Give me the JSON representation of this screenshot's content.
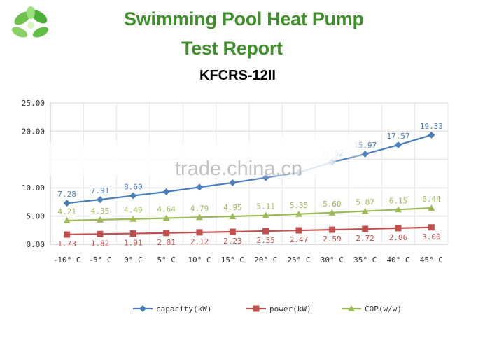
{
  "header": {
    "title_line1": "Swimming Pool Heat Pump",
    "title_line2": "Test Report",
    "model": "KFCRS-12II"
  },
  "logo": {
    "icon": "green-leaves-logo"
  },
  "watermark": "trade.china.cn",
  "colors": {
    "title": "#3f8f2a",
    "capacity": "#4a7ebb",
    "power": "#c0504d",
    "cop": "#9bbb59",
    "grid": "#d9d9d9"
  },
  "chart_data": {
    "type": "line",
    "categories": [
      "-10° C",
      "-5° C",
      "0° C",
      "5° C",
      "10° C",
      "15° C",
      "20° C",
      "25° C",
      "30° C",
      "35° C",
      "40° C",
      "45° C"
    ],
    "y_ticks": [
      "0.00",
      "5.00",
      "10.00",
      "",
      "20.00",
      "25.00"
    ],
    "ylim": [
      0,
      25
    ],
    "grid": true,
    "legend_position": "bottom",
    "series": [
      {
        "name": "capacity(kW)",
        "color": "#4a7ebb",
        "marker": "diamond",
        "values": [
          7.28,
          7.91,
          8.6,
          9.3,
          10.1,
          10.9,
          11.8,
          12.7,
          14.52,
          15.97,
          17.57,
          19.33
        ],
        "labels": [
          "7.28",
          "7.91",
          "8.60",
          "",
          "",
          "",
          "",
          "",
          "14.52",
          "15.97",
          "17.57",
          "19.33"
        ]
      },
      {
        "name": "power(kW)",
        "color": "#c0504d",
        "marker": "square",
        "values": [
          1.73,
          1.82,
          1.91,
          2.01,
          2.12,
          2.23,
          2.35,
          2.47,
          2.59,
          2.72,
          2.86,
          3.0
        ],
        "labels": [
          "1.73",
          "1.82",
          "1.91",
          "2.01",
          "2.12",
          "2.23",
          "2.35",
          "2.47",
          "2.59",
          "2.72",
          "2.86",
          "3.00"
        ]
      },
      {
        "name": "COP(w/w)",
        "color": "#9bbb59",
        "marker": "triangle",
        "values": [
          4.21,
          4.35,
          4.49,
          4.64,
          4.79,
          4.95,
          5.11,
          5.35,
          5.6,
          5.87,
          6.15,
          6.44
        ],
        "labels": [
          "4.21",
          "4.35",
          "4.49",
          "4.64",
          "4.79",
          "4.95",
          "5.11",
          "5.35",
          "5.60",
          "5.87",
          "6.15",
          "6.44"
        ]
      }
    ]
  }
}
